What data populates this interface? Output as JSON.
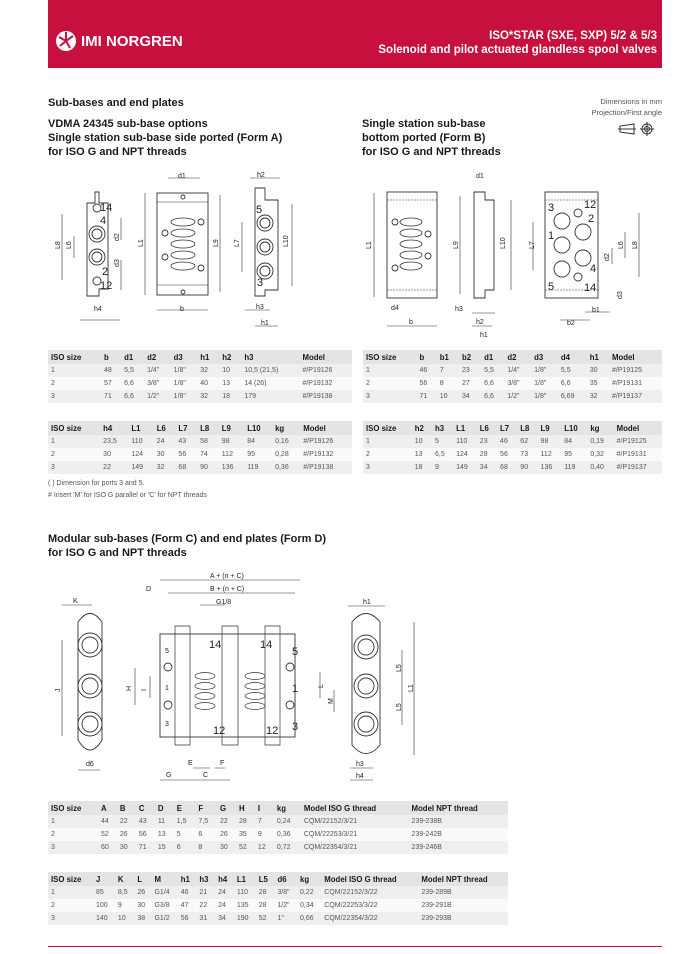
{
  "header": {
    "brand": "IMI NORGREN",
    "title_line1": "ISO*STAR (SXE, SXP) 5/2 & 5/3",
    "title_line2": "Solenoid and pilot actuated glandless spool valves",
    "brand_color": "#c8103e"
  },
  "section1": {
    "heading": "Sub-bases and end plates",
    "formA_title": [
      "VDMA 24345 sub-base options",
      "Single station sub-base side ported (Form A)",
      "for ISO G and NPT threads"
    ],
    "formB_title": [
      "Single station sub-base",
      "bottom ported (Form B)",
      "for ISO G  and NPT threads"
    ],
    "dimensions_note": "Dimensions in mm",
    "projection_note": "Projection/First angle"
  },
  "drawing_a": {
    "labels": [
      "14",
      "4",
      "2",
      "12",
      "L8",
      "L6",
      "d2",
      "d3",
      "h4",
      "d1",
      "L1",
      "L9",
      "b",
      "h2",
      "5",
      "3",
      "L7",
      "L10",
      "h3",
      "h1"
    ]
  },
  "drawing_b": {
    "labels": [
      "L1",
      "d4",
      "b",
      "d1",
      "L9",
      "L10",
      "h3",
      "h2",
      "h1",
      "3",
      "12",
      "2",
      "1",
      "4",
      "5",
      "14",
      "L7",
      "L6",
      "L8",
      "d2",
      "d3",
      "b1",
      "b2"
    ]
  },
  "drawing_c": {
    "labels": [
      "K",
      "J",
      "d6",
      "A + (n + C)",
      "B + (n + C)",
      "D",
      "G1/8",
      "14",
      "14",
      "12",
      "12",
      "5",
      "1",
      "3",
      "5",
      "1",
      "3",
      "H",
      "I",
      "E",
      "F",
      "G",
      "C",
      "h1",
      "L5",
      "L5",
      "L1",
      "L",
      "M",
      "h3",
      "h4"
    ]
  },
  "tables": {
    "formA_1": {
      "headers": [
        "ISO size",
        "b",
        "d1",
        "d2",
        "d3",
        "h1",
        "h2",
        "h3",
        "Model"
      ],
      "rows": [
        [
          "1",
          "48",
          "5,5",
          "1/4\"",
          "1/8\"",
          "32",
          "10",
          "10,5 (21,5)",
          "#/P19126"
        ],
        [
          "2",
          "57",
          "6,6",
          "3/8\"",
          "1/8\"",
          "40",
          "13",
          "14 (26)",
          "#/P19132"
        ],
        [
          "3",
          "71",
          "6,6",
          "1/2\"",
          "1/8\"",
          "32",
          "18",
          "179",
          "#/P19138"
        ]
      ]
    },
    "formA_2": {
      "headers": [
        "ISO size",
        "h4",
        "L1",
        "L6",
        "L7",
        "L8",
        "L9",
        "L10",
        "kg",
        "Model"
      ],
      "rows": [
        [
          "1",
          "23,5",
          "110",
          "24",
          "43",
          "58",
          "98",
          "84",
          "0,16",
          "#/P19126"
        ],
        [
          "2",
          "30",
          "124",
          "30",
          "56",
          "74",
          "112",
          "95",
          "0,28",
          "#/P19132"
        ],
        [
          "3",
          "22",
          "149",
          "32",
          "68",
          "90",
          "136",
          "119",
          "0,36",
          "#/P19138"
        ]
      ]
    },
    "formB_1": {
      "headers": [
        "ISO size",
        "b",
        "b1",
        "b2",
        "d1",
        "d2",
        "d3",
        "d4",
        "h1",
        "Model"
      ],
      "rows": [
        [
          "1",
          "46",
          "7",
          "23",
          "5,5",
          "1/4\"",
          "1/8\"",
          "5,5",
          "30",
          "#/P19125"
        ],
        [
          "2",
          "56",
          "8",
          "27",
          "6,6",
          "3/8\"",
          "1/8\"",
          "6,6",
          "35",
          "#/P19131"
        ],
        [
          "3",
          "71",
          "10",
          "34",
          "6,6",
          "1/2\"",
          "1/8\"",
          "6,69",
          "32",
          "#/P19137"
        ]
      ]
    },
    "formB_2": {
      "headers": [
        "ISO size",
        "h2",
        "h3",
        "L1",
        "L6",
        "L7",
        "L8",
        "L9",
        "L10",
        "kg",
        "Model"
      ],
      "rows": [
        [
          "1",
          "10",
          "5",
          "110",
          "23",
          "46",
          "62",
          "98",
          "84",
          "0,19",
          "#/P19125"
        ],
        [
          "2",
          "13",
          "6,5",
          "124",
          "28",
          "56",
          "73",
          "112",
          "95",
          "0,32",
          "#/P19131"
        ],
        [
          "3",
          "18",
          "9",
          "149",
          "34",
          "68",
          "90",
          "136",
          "119",
          "0,40",
          "#/P19137"
        ]
      ]
    },
    "formC_1": {
      "headers": [
        "ISO size",
        "A",
        "B",
        "C",
        "D",
        "E",
        "F",
        "G",
        "H",
        "I",
        "kg",
        "Model ISO G thread",
        "Model NPT thread"
      ],
      "rows": [
        [
          "1",
          "44",
          "22",
          "43",
          "11",
          "1,5",
          "7,5",
          "22",
          "28",
          "7",
          "0,24",
          "CQM/22152/3/21",
          "239-238B"
        ],
        [
          "2",
          "52",
          "26",
          "56",
          "13",
          "5",
          "6",
          "26",
          "35",
          "9",
          "0,36",
          "CQM/22253/3/21",
          "239-242B"
        ],
        [
          "3",
          "60",
          "30",
          "71",
          "15",
          "6",
          "8",
          "30",
          "52",
          "12",
          "0,72",
          "CQM/22354/3/21",
          "239-246B"
        ]
      ]
    },
    "formC_2": {
      "headers": [
        "ISO size",
        "J",
        "K",
        "L",
        "M",
        "h1",
        "h3",
        "h4",
        "L1",
        "L5",
        "d6",
        "kg",
        "Model ISO G thread",
        "Model NPT thread"
      ],
      "rows": [
        [
          "1",
          "85",
          "8,5",
          "26",
          "G1/4",
          "46",
          "21",
          "24",
          "110",
          "28",
          "3/8\"",
          "0,22",
          "CQM/22152/3/22",
          "239-289B"
        ],
        [
          "2",
          "100",
          "9",
          "30",
          "G3/8",
          "47",
          "22",
          "24",
          "135",
          "28",
          "1/2\"",
          "0,34",
          "CQM/22253/3/22",
          "239-291B"
        ],
        [
          "3",
          "140",
          "10",
          "38",
          "G1/2",
          "56",
          "31",
          "34",
          "190",
          "52",
          "1\"",
          "0,66",
          "CQM/22354/3/22",
          "239-293B"
        ]
      ]
    }
  },
  "notes": [
    "( ) Dimension for ports 3 and 5.",
    "# Insert 'M' for ISO G parallel or 'C' for NPT threads"
  ],
  "section2": {
    "heading": [
      "Modular sub-bases (Form C) and end plates (Form D)",
      "for ISO G and NPT threads"
    ]
  }
}
